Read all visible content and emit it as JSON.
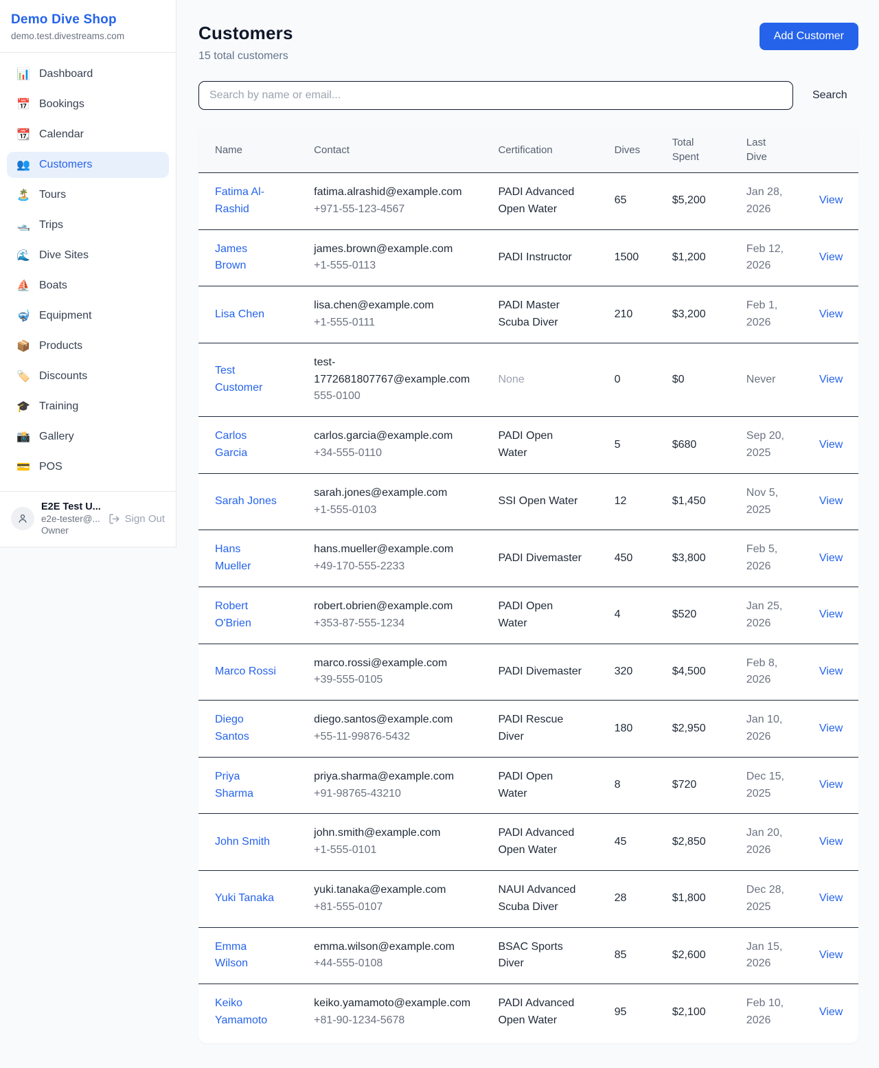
{
  "app": {
    "name": "Demo Dive Shop",
    "domain": "demo.test.divestreams.com"
  },
  "colors": {
    "accent": "#2563eb",
    "active_item_bg": "#e8f0fc",
    "page_bg": "#f8fafc",
    "row_border": "#1e293b",
    "header_bg": "#f8f9fb"
  },
  "sidebar": {
    "items": [
      {
        "id": "dashboard",
        "icon": "📊",
        "label": "Dashboard",
        "active": false
      },
      {
        "id": "bookings",
        "icon": "📅",
        "label": "Bookings",
        "active": false
      },
      {
        "id": "calendar",
        "icon": "📆",
        "label": "Calendar",
        "active": false
      },
      {
        "id": "customers",
        "icon": "👥",
        "label": "Customers",
        "active": true
      },
      {
        "id": "tours",
        "icon": "🏝️",
        "label": "Tours",
        "active": false
      },
      {
        "id": "trips",
        "icon": "🛥️",
        "label": "Trips",
        "active": false
      },
      {
        "id": "dive-sites",
        "icon": "🌊",
        "label": "Dive Sites",
        "active": false
      },
      {
        "id": "boats",
        "icon": "⛵",
        "label": "Boats",
        "active": false
      },
      {
        "id": "equipment",
        "icon": "🤿",
        "label": "Equipment",
        "active": false
      },
      {
        "id": "products",
        "icon": "📦",
        "label": "Products",
        "active": false
      },
      {
        "id": "discounts",
        "icon": "🏷️",
        "label": "Discounts",
        "active": false
      },
      {
        "id": "training",
        "icon": "🎓",
        "label": "Training",
        "active": false
      },
      {
        "id": "gallery",
        "icon": "📸",
        "label": "Gallery",
        "active": false
      },
      {
        "id": "pos",
        "icon": "💳",
        "label": "POS",
        "active": false
      }
    ],
    "user": {
      "name": "E2E Test U...",
      "email": "e2e-tester@...",
      "role": "Owner",
      "sign_out_label": "Sign Out"
    }
  },
  "header": {
    "title": "Customers",
    "subtitle": "15 total customers",
    "add_button_label": "Add Customer"
  },
  "search": {
    "placeholder": "Search by name or email...",
    "button_label": "Search"
  },
  "table": {
    "columns": [
      "Name",
      "Contact",
      "Certification",
      "Dives",
      "Total Spent",
      "Last Dive",
      ""
    ],
    "view_label": "View",
    "rows": [
      {
        "name": "Fatima Al-Rashid",
        "email": "fatima.alrashid@example.com",
        "phone": "+971-55-123-4567",
        "certification": "PADI Advanced Open Water",
        "cert_muted": false,
        "dives": "65",
        "total_spent": "$5,200",
        "last_dive": "Jan 28, 2026"
      },
      {
        "name": "James Brown",
        "email": "james.brown@example.com",
        "phone": "+1-555-0113",
        "certification": "PADI Instructor",
        "cert_muted": false,
        "dives": "1500",
        "total_spent": "$1,200",
        "last_dive": "Feb 12, 2026"
      },
      {
        "name": "Lisa Chen",
        "email": "lisa.chen@example.com",
        "phone": "+1-555-0111",
        "certification": "PADI Master Scuba Diver",
        "cert_muted": false,
        "dives": "210",
        "total_spent": "$3,200",
        "last_dive": "Feb 1, 2026"
      },
      {
        "name": "Test Customer",
        "email": "test-1772681807767@example.com",
        "phone": "555-0100",
        "certification": "None",
        "cert_muted": true,
        "dives": "0",
        "total_spent": "$0",
        "last_dive": "Never"
      },
      {
        "name": "Carlos Garcia",
        "email": "carlos.garcia@example.com",
        "phone": "+34-555-0110",
        "certification": "PADI Open Water",
        "cert_muted": false,
        "dives": "5",
        "total_spent": "$680",
        "last_dive": "Sep 20, 2025"
      },
      {
        "name": "Sarah Jones",
        "email": "sarah.jones@example.com",
        "phone": "+1-555-0103",
        "certification": "SSI Open Water",
        "cert_muted": false,
        "dives": "12",
        "total_spent": "$1,450",
        "last_dive": "Nov 5, 2025"
      },
      {
        "name": "Hans Mueller",
        "email": "hans.mueller@example.com",
        "phone": "+49-170-555-2233",
        "certification": "PADI Divemaster",
        "cert_muted": false,
        "dives": "450",
        "total_spent": "$3,800",
        "last_dive": "Feb 5, 2026"
      },
      {
        "name": "Robert O'Brien",
        "email": "robert.obrien@example.com",
        "phone": "+353-87-555-1234",
        "certification": "PADI Open Water",
        "cert_muted": false,
        "dives": "4",
        "total_spent": "$520",
        "last_dive": "Jan 25, 2026"
      },
      {
        "name": "Marco Rossi",
        "email": "marco.rossi@example.com",
        "phone": "+39-555-0105",
        "certification": "PADI Divemaster",
        "cert_muted": false,
        "dives": "320",
        "total_spent": "$4,500",
        "last_dive": "Feb 8, 2026"
      },
      {
        "name": "Diego Santos",
        "email": "diego.santos@example.com",
        "phone": "+55-11-99876-5432",
        "certification": "PADI Rescue Diver",
        "cert_muted": false,
        "dives": "180",
        "total_spent": "$2,950",
        "last_dive": "Jan 10, 2026"
      },
      {
        "name": "Priya Sharma",
        "email": "priya.sharma@example.com",
        "phone": "+91-98765-43210",
        "certification": "PADI Open Water",
        "cert_muted": false,
        "dives": "8",
        "total_spent": "$720",
        "last_dive": "Dec 15, 2025"
      },
      {
        "name": "John Smith",
        "email": "john.smith@example.com",
        "phone": "+1-555-0101",
        "certification": "PADI Advanced Open Water",
        "cert_muted": false,
        "dives": "45",
        "total_spent": "$2,850",
        "last_dive": "Jan 20, 2026"
      },
      {
        "name": "Yuki Tanaka",
        "email": "yuki.tanaka@example.com",
        "phone": "+81-555-0107",
        "certification": "NAUI Advanced Scuba Diver",
        "cert_muted": false,
        "dives": "28",
        "total_spent": "$1,800",
        "last_dive": "Dec 28, 2025"
      },
      {
        "name": "Emma Wilson",
        "email": "emma.wilson@example.com",
        "phone": "+44-555-0108",
        "certification": "BSAC Sports Diver",
        "cert_muted": false,
        "dives": "85",
        "total_spent": "$2,600",
        "last_dive": "Jan 15, 2026"
      },
      {
        "name": "Keiko Yamamoto",
        "email": "keiko.yamamoto@example.com",
        "phone": "+81-90-1234-5678",
        "certification": "PADI Advanced Open Water",
        "cert_muted": false,
        "dives": "95",
        "total_spent": "$2,100",
        "last_dive": "Feb 10, 2026"
      }
    ]
  }
}
